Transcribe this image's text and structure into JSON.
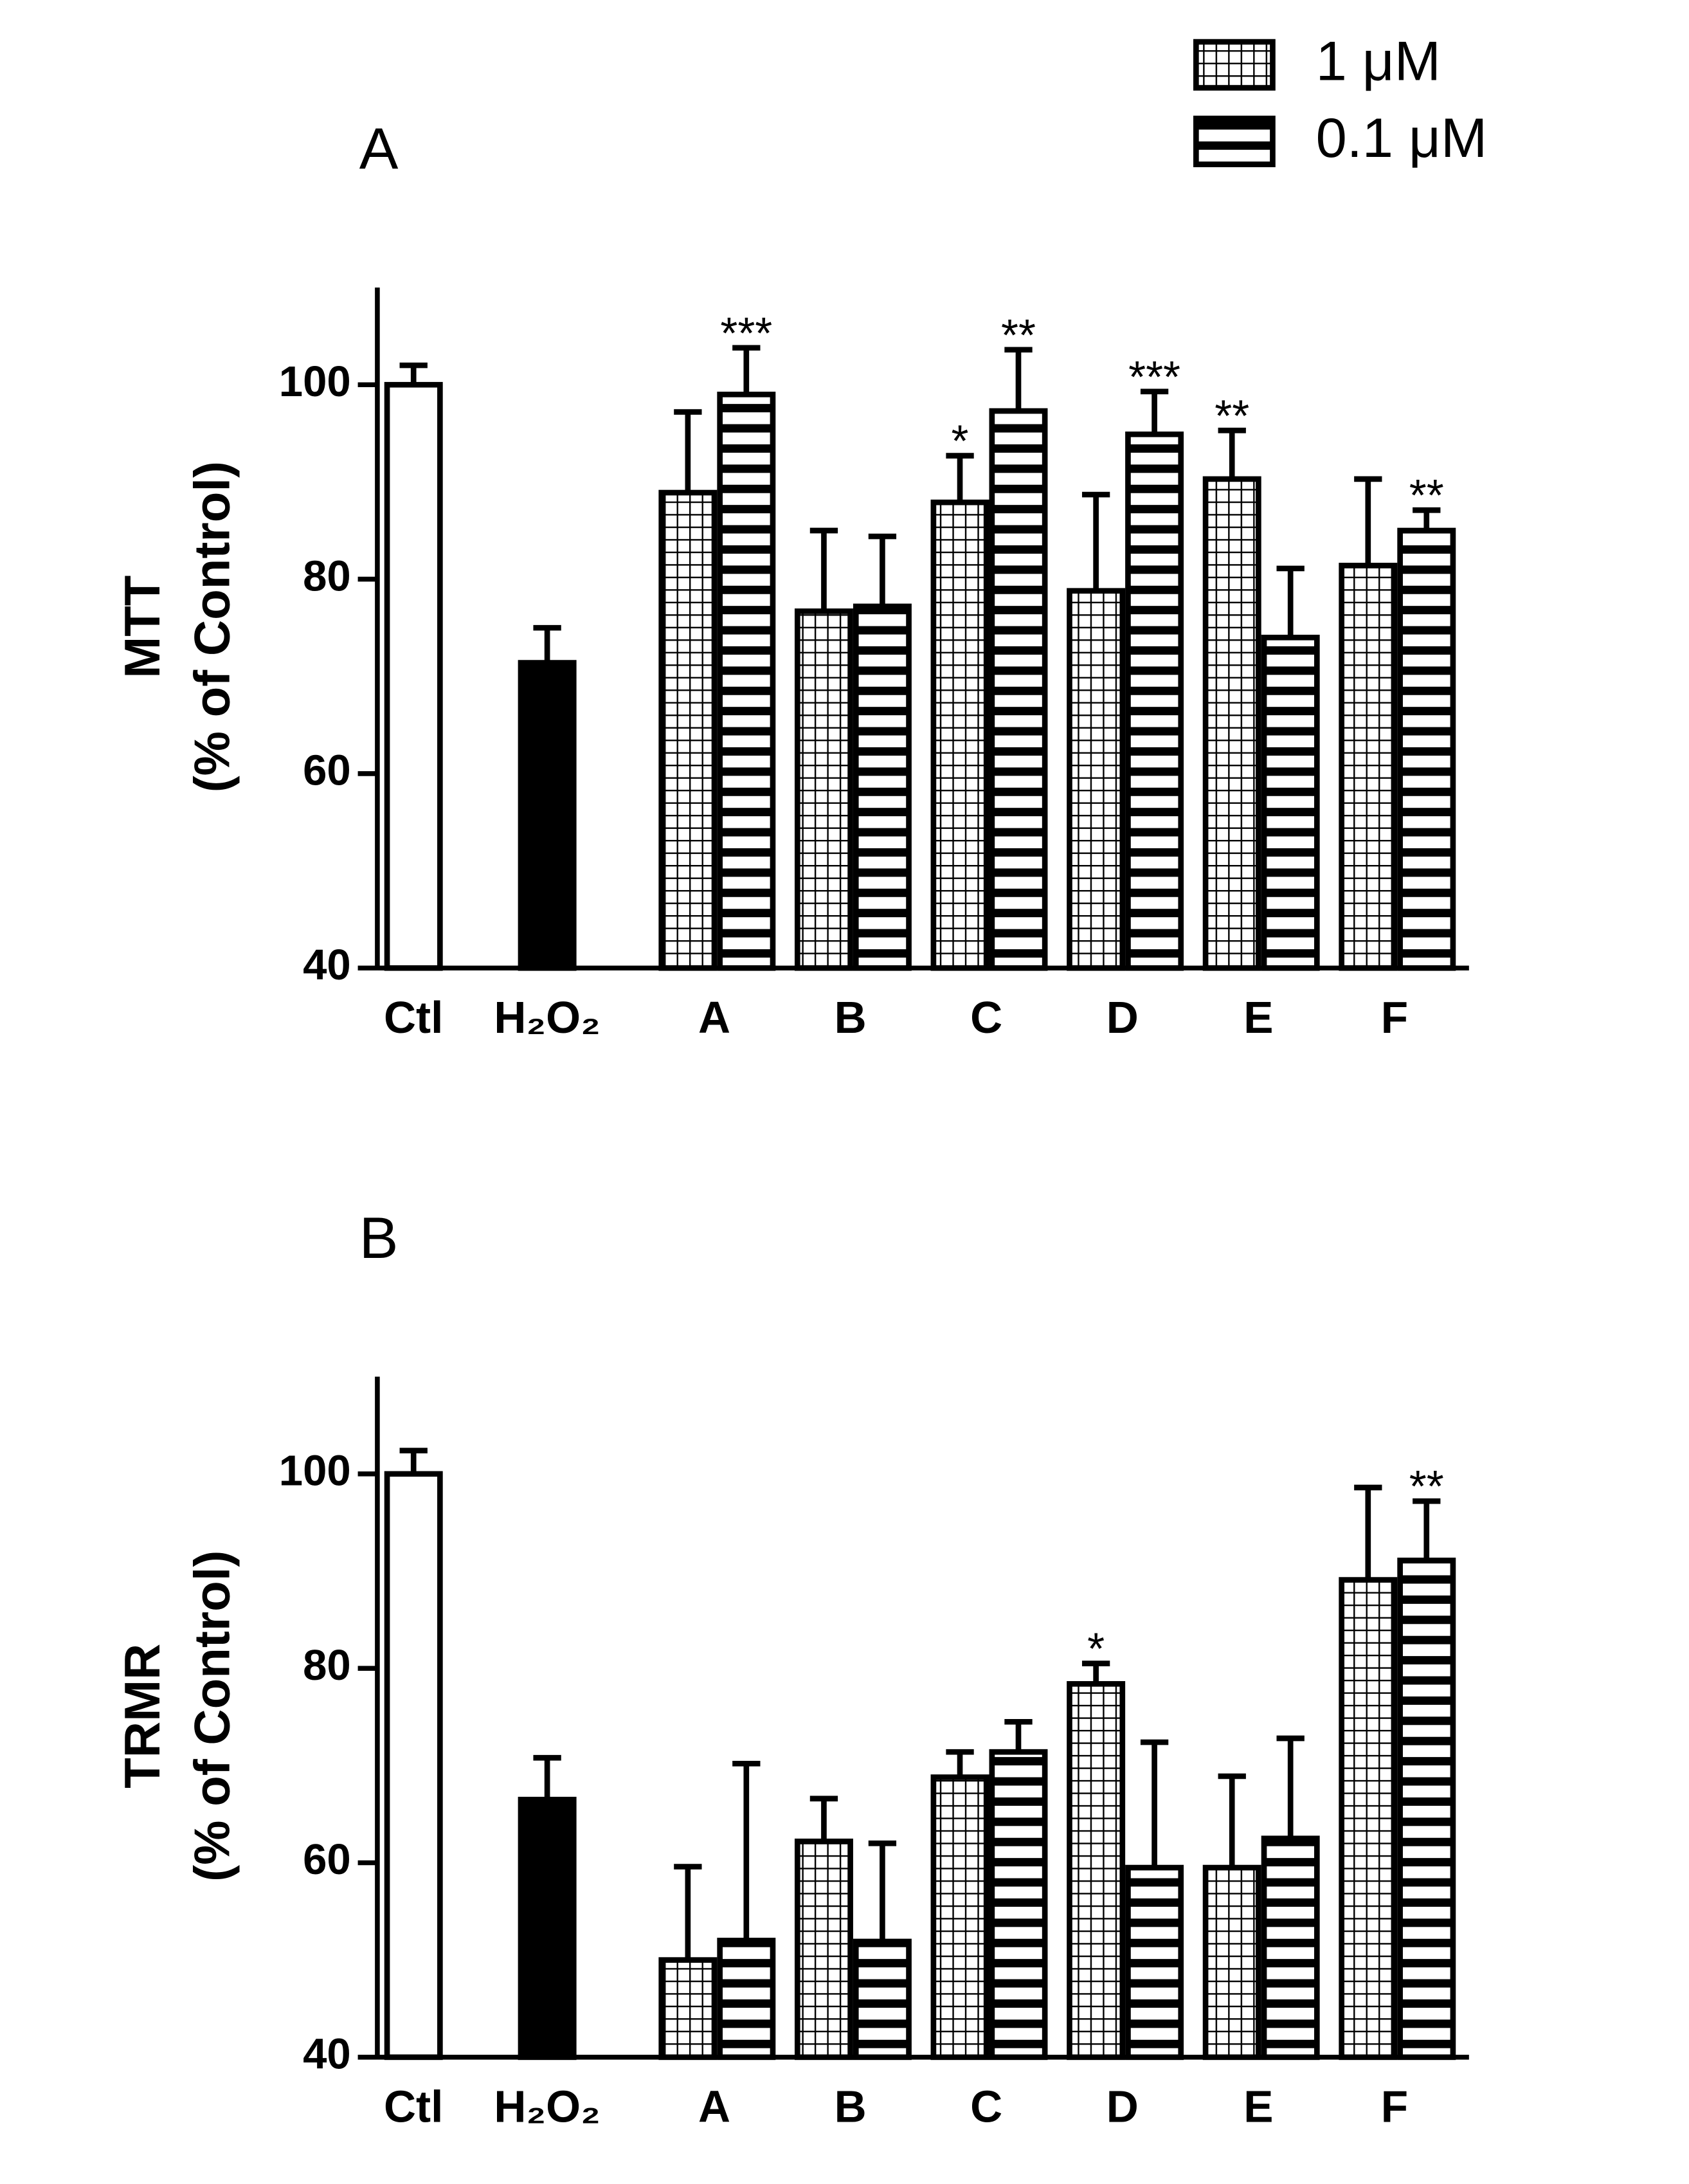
{
  "legend": [
    {
      "name": "1 μM",
      "pattern": "grid"
    },
    {
      "name": "0.1 μM",
      "pattern": "hlines"
    }
  ],
  "chart_data": [
    {
      "type": "bar",
      "panel": "A",
      "ylabel": [
        "MTT",
        "(% of Control)"
      ],
      "ylim": [
        40,
        110
      ],
      "yticks": [
        40,
        60,
        80,
        100
      ],
      "categories": [
        "Ctl",
        "H₂O₂",
        "A",
        "B",
        "C",
        "D",
        "E",
        "F"
      ],
      "controls": {
        "values": [
          100,
          71.4
        ],
        "errors": [
          2,
          3.6
        ],
        "colors": [
          "#ffffff",
          "#000000"
        ]
      },
      "series": [
        {
          "pattern": "grid",
          "values": [
            null,
            null,
            88.9,
            76.7,
            87.9,
            78.8,
            90.3,
            81.4
          ],
          "errors": [
            null,
            null,
            8.3,
            8.3,
            4.8,
            9.9,
            5,
            8.9
          ],
          "annotations": [
            null,
            null,
            null,
            null,
            "*",
            null,
            "**",
            null
          ]
        },
        {
          "pattern": "hlines",
          "values": [
            null,
            null,
            99,
            77.2,
            97.3,
            94.9,
            74,
            85
          ],
          "errors": [
            null,
            null,
            4.8,
            7.2,
            6.3,
            4.4,
            7.1,
            2.1
          ],
          "annotations": [
            null,
            null,
            "***",
            null,
            "**",
            "***",
            null,
            "**"
          ]
        }
      ]
    },
    {
      "type": "bar",
      "panel": "B",
      "ylabel": [
        "TRMR",
        "(% of Control)"
      ],
      "ylim": [
        40,
        110
      ],
      "yticks": [
        40,
        60,
        80,
        100
      ],
      "categories": [
        "Ctl",
        "H₂O₂",
        "A",
        "B",
        "C",
        "D",
        "E",
        "F"
      ],
      "controls": {
        "values": [
          100,
          66.5
        ],
        "errors": [
          2.4,
          4.3
        ],
        "colors": [
          "#ffffff",
          "#000000"
        ]
      },
      "series": [
        {
          "pattern": "grid",
          "values": [
            null,
            null,
            50,
            62.2,
            68.8,
            78.4,
            59.5,
            89.1
          ],
          "errors": [
            null,
            null,
            9.6,
            4.4,
            2.6,
            2.1,
            9.4,
            9.5
          ],
          "annotations": [
            null,
            null,
            null,
            null,
            null,
            "*",
            null,
            null
          ]
        },
        {
          "pattern": "hlines",
          "values": [
            null,
            null,
            52,
            51.9,
            71.4,
            59.5,
            62.5,
            91.1
          ],
          "errors": [
            null,
            null,
            18.2,
            10.1,
            3.1,
            12.9,
            10.3,
            6.1
          ],
          "annotations": [
            null,
            null,
            null,
            null,
            null,
            null,
            null,
            "**"
          ]
        }
      ]
    }
  ]
}
